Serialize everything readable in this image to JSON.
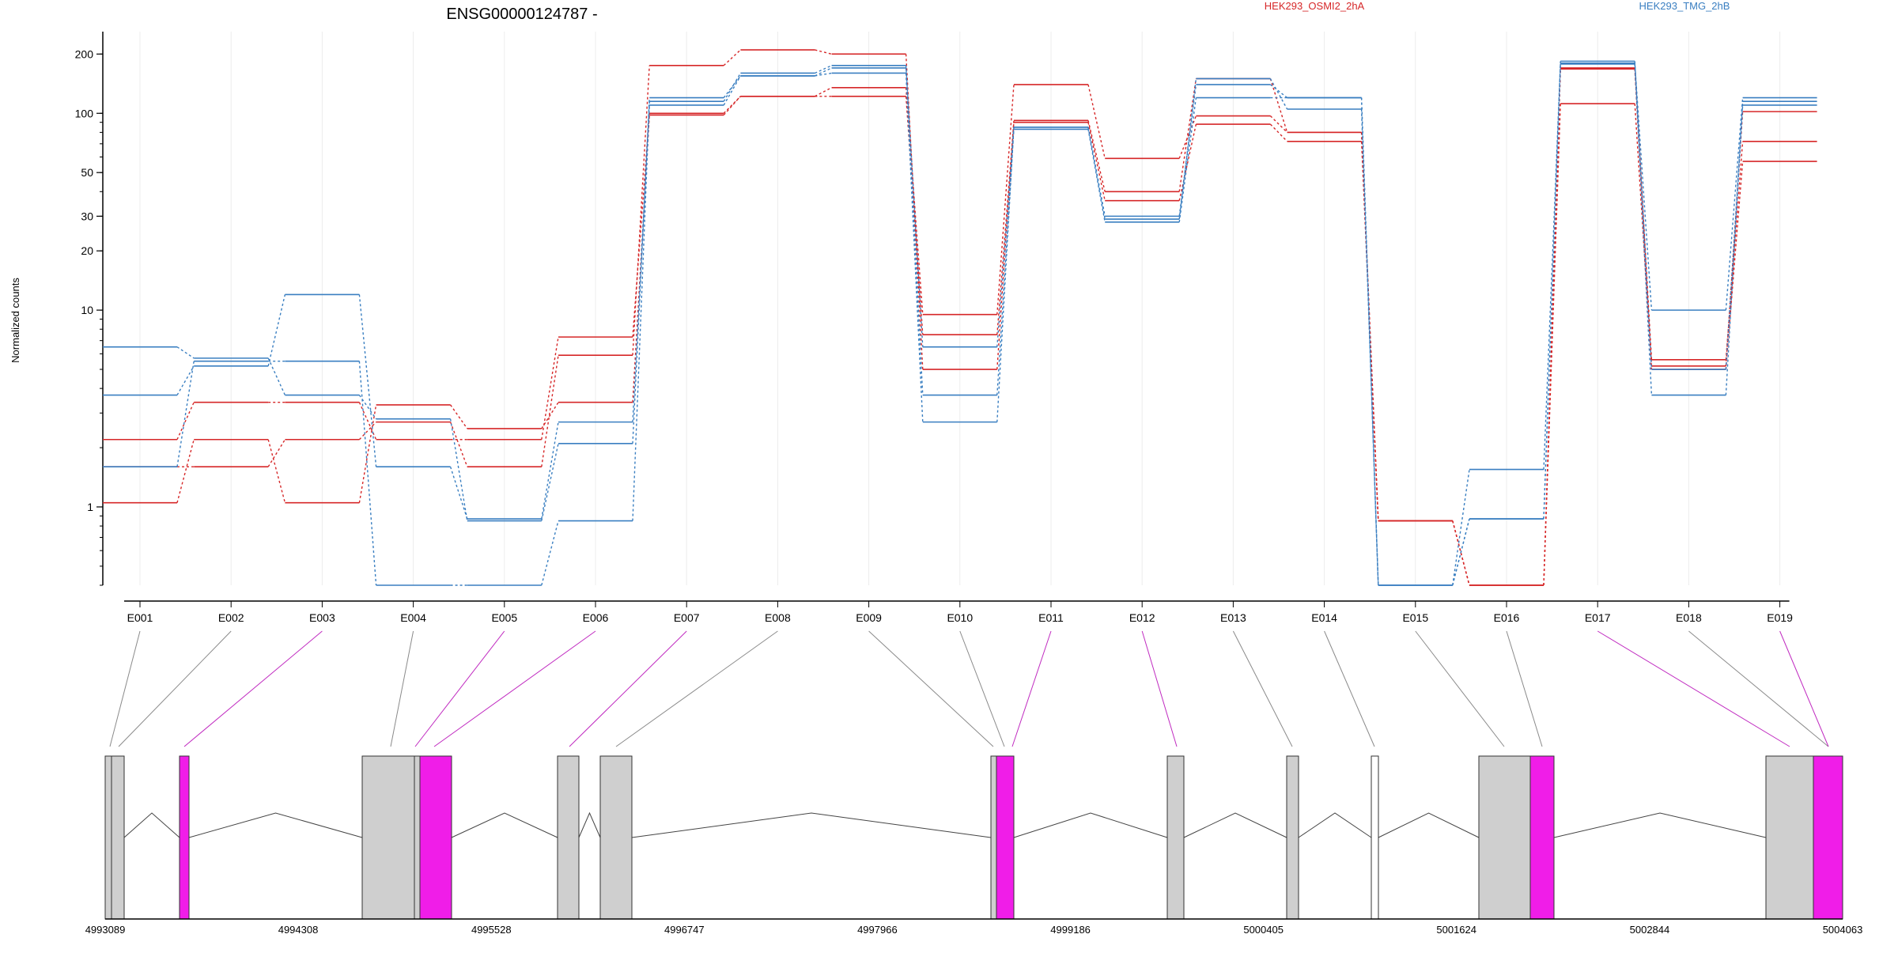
{
  "chart_data": {
    "type": "line",
    "title": "ENSG00000124787 -",
    "ylabel": "Normalized counts",
    "y_scale": "log",
    "ylim": [
      0.4,
      260
    ],
    "y_ticks": [
      1,
      10,
      20,
      30,
      50,
      100,
      200
    ],
    "x_categories": [
      "E001",
      "E002",
      "E003",
      "E004",
      "E005",
      "E006",
      "E007",
      "E008",
      "E009",
      "E010",
      "E011",
      "E012",
      "E013",
      "E014",
      "E015",
      "E016",
      "E017",
      "E018",
      "E019"
    ],
    "legend": [
      {
        "name": "HEK293_OSMI2_2hA",
        "color": "#d62728"
      },
      {
        "name": "HEK293_TMG_2hB",
        "color": "#3a7fc1"
      }
    ],
    "series": [
      {
        "group": "HEK293_OSMI2_2hA",
        "color": "#d62728",
        "values": [
          1.05,
          2.2,
          1.05,
          3.3,
          2.5,
          3.4,
          98,
          122,
          135,
          9.5,
          140,
          59,
          97,
          80,
          0.85,
          0.4,
          112,
          5.2,
          102
        ]
      },
      {
        "group": "HEK293_OSMI2_2hA",
        "color": "#d62728",
        "values": [
          2.2,
          3.4,
          3.4,
          2.2,
          2.2,
          7.3,
          100,
          122,
          122,
          7.5,
          90,
          36,
          88,
          72,
          0.85,
          0.4,
          170,
          5.6,
          72
        ]
      },
      {
        "group": "HEK293_OSMI2_2hA",
        "color": "#d62728",
        "values": [
          1.6,
          1.6,
          2.2,
          2.7,
          1.6,
          5.9,
          175,
          210,
          200,
          5.0,
          92,
          40,
          150,
          80,
          0.85,
          0.4,
          168,
          5.0,
          57
        ]
      },
      {
        "group": "HEK293_TMG_2hB",
        "color": "#3a7fc1",
        "values": [
          3.7,
          5.2,
          12,
          1.6,
          0.87,
          2.7,
          110,
          155,
          160,
          2.7,
          85,
          30,
          140,
          120,
          0.4,
          1.55,
          180,
          10,
          120
        ]
      },
      {
        "group": "HEK293_TMG_2hB",
        "color": "#3a7fc1",
        "values": [
          6.5,
          5.7,
          3.7,
          2.8,
          0.85,
          2.1,
          120,
          155,
          170,
          3.7,
          83,
          28,
          120,
          120,
          0.4,
          0.87,
          184,
          5.0,
          110
        ]
      },
      {
        "group": "HEK293_TMG_2hB",
        "color": "#3a7fc1",
        "values": [
          1.6,
          5.5,
          5.5,
          0.4,
          0.4,
          0.85,
          115,
          160,
          175,
          6.5,
          85,
          29,
          150,
          105,
          0.4,
          0.87,
          178,
          3.7,
          115
        ]
      }
    ],
    "gene_model": {
      "coordinates": [
        "4993089",
        "4994308",
        "4995528",
        "4996747",
        "4997966",
        "4999186",
        "5000405",
        "5001624",
        "5002844",
        "5004063"
      ],
      "exon_colors": {
        "tested": "#cfcfcf",
        "significant": "#f01de8",
        "small": "#ffffff"
      }
    }
  }
}
